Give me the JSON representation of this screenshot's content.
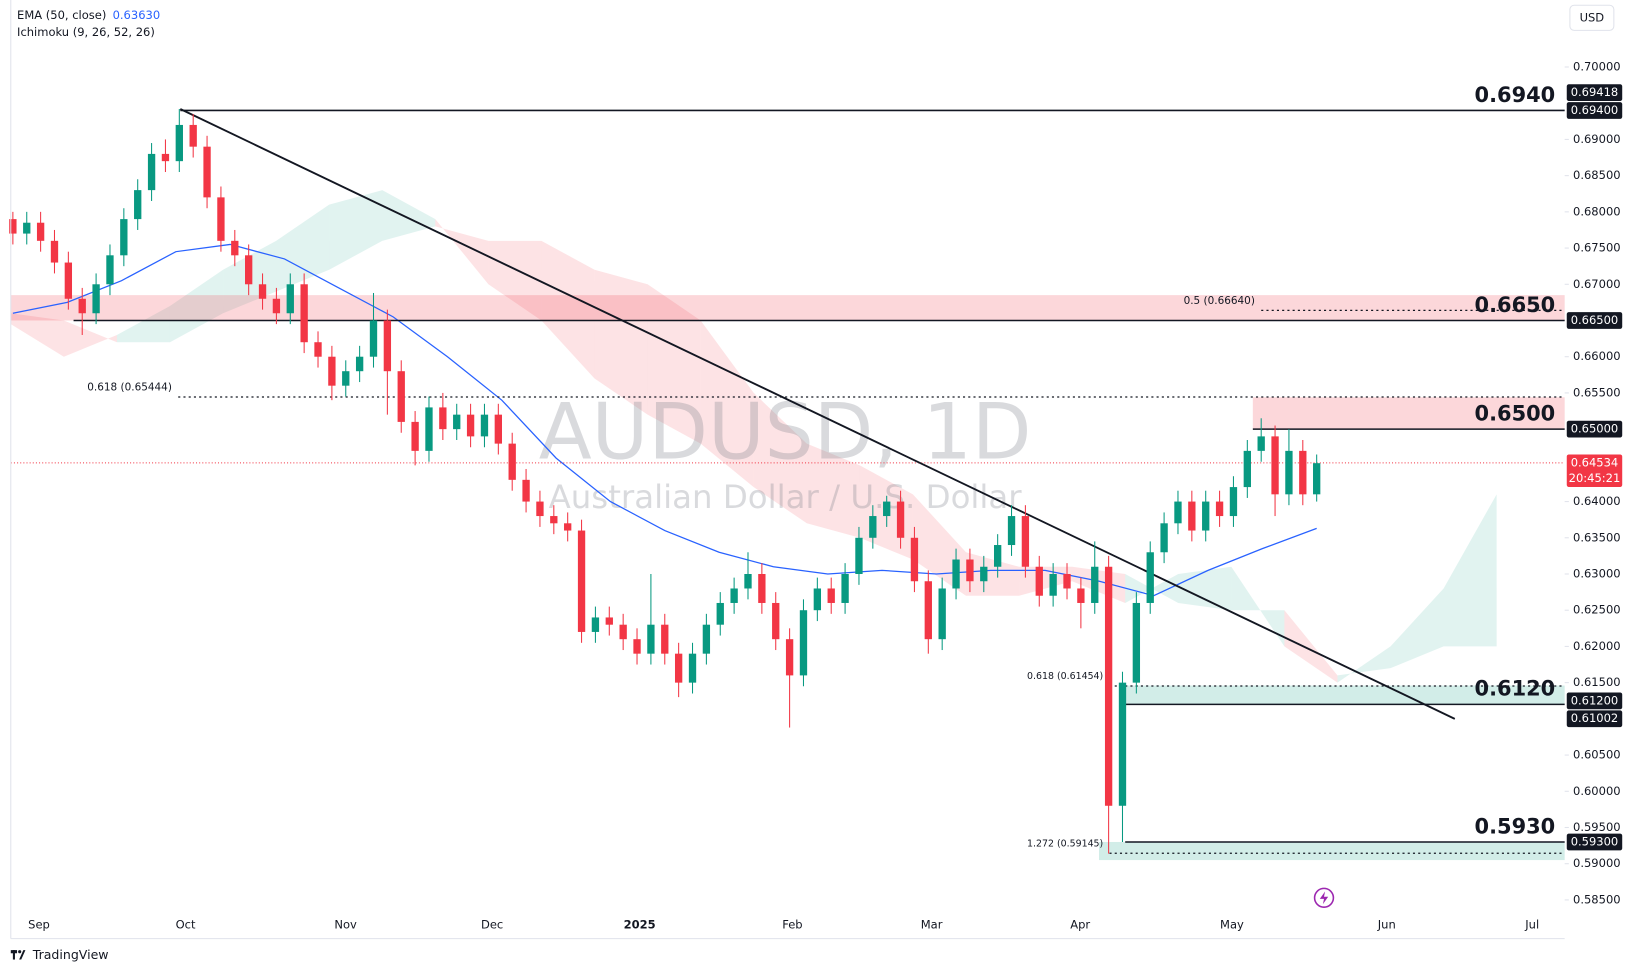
{
  "chart_data": {
    "type": "candlestick",
    "legend": [
      {
        "label": "EMA (50, close)",
        "value": 0.6363,
        "value_label": "0.63630"
      },
      {
        "label": "Ichimoku (9, 26, 52, 26)"
      }
    ],
    "watermark": "AUDUSD, 1D",
    "subtitle": "Australian Dollar / U.S. Dollar",
    "currency": "USD",
    "brand": "TradingView",
    "x_labels": [
      "Sep",
      "Oct",
      "Nov",
      "Dec",
      "2025",
      "Feb",
      "Mar",
      "Apr",
      "May",
      "Jun",
      "Jul"
    ],
    "ylim": [
      0.58356,
      0.70925
    ],
    "yticks": [
      {
        "value": 0.585,
        "label": "0.58500"
      },
      {
        "value": 0.59,
        "label": "0.59000"
      },
      {
        "value": 0.595,
        "label": "0.59500"
      },
      {
        "value": 0.6,
        "label": "0.60000"
      },
      {
        "value": 0.605,
        "label": "0.60500"
      },
      {
        "value": 0.615,
        "label": "0.61500"
      },
      {
        "value": 0.62,
        "label": "0.62000"
      },
      {
        "value": 0.625,
        "label": "0.62500"
      },
      {
        "value": 0.63,
        "label": "0.63000"
      },
      {
        "value": 0.635,
        "label": "0.63500"
      },
      {
        "value": 0.64,
        "label": "0.64000"
      },
      {
        "value": 0.655,
        "label": "0.65500"
      },
      {
        "value": 0.66,
        "label": "0.66000"
      },
      {
        "value": 0.67,
        "label": "0.67000"
      },
      {
        "value": 0.675,
        "label": "0.67500"
      },
      {
        "value": 0.68,
        "label": "0.68000"
      },
      {
        "value": 0.685,
        "label": "0.68500"
      },
      {
        "value": 0.69,
        "label": "0.69000"
      },
      {
        "value": 0.7,
        "label": "0.70000"
      }
    ],
    "up_color": "#089981",
    "down_color": "#f23645",
    "ohlc": [
      [
        0.679,
        0.68,
        0.6755,
        0.677
      ],
      [
        0.677,
        0.68,
        0.6755,
        0.6785
      ],
      [
        0.6785,
        0.68,
        0.6745,
        0.676
      ],
      [
        0.676,
        0.6775,
        0.6715,
        0.673
      ],
      [
        0.673,
        0.6745,
        0.6665,
        0.668
      ],
      [
        0.668,
        0.6695,
        0.663,
        0.666
      ],
      [
        0.666,
        0.6715,
        0.6645,
        0.67
      ],
      [
        0.67,
        0.6755,
        0.6685,
        0.674
      ],
      [
        0.674,
        0.6805,
        0.6725,
        0.679
      ],
      [
        0.679,
        0.6845,
        0.6775,
        0.683
      ],
      [
        0.683,
        0.6895,
        0.6815,
        0.688
      ],
      [
        0.688,
        0.69,
        0.6855,
        0.687
      ],
      [
        0.687,
        0.6942,
        0.6855,
        0.692
      ],
      [
        0.692,
        0.6935,
        0.6875,
        0.689
      ],
      [
        0.689,
        0.6905,
        0.6805,
        0.682
      ],
      [
        0.682,
        0.6835,
        0.6745,
        0.676
      ],
      [
        0.676,
        0.6775,
        0.6725,
        0.674
      ],
      [
        0.674,
        0.6755,
        0.6685,
        0.67
      ],
      [
        0.67,
        0.6715,
        0.6665,
        0.668
      ],
      [
        0.668,
        0.6695,
        0.6645,
        0.666
      ],
      [
        0.666,
        0.6715,
        0.6645,
        0.67
      ],
      [
        0.67,
        0.6715,
        0.6605,
        0.662
      ],
      [
        0.662,
        0.6635,
        0.6585,
        0.66
      ],
      [
        0.66,
        0.6615,
        0.654,
        0.656
      ],
      [
        0.656,
        0.6595,
        0.6545,
        0.658
      ],
      [
        0.658,
        0.6615,
        0.6565,
        0.66
      ],
      [
        0.66,
        0.6688,
        0.6585,
        0.665
      ],
      [
        0.665,
        0.6665,
        0.652,
        0.658
      ],
      [
        0.658,
        0.6595,
        0.6495,
        0.651
      ],
      [
        0.651,
        0.6525,
        0.645,
        0.647
      ],
      [
        0.647,
        0.6545,
        0.6455,
        0.653
      ],
      [
        0.653,
        0.655,
        0.6485,
        0.65
      ],
      [
        0.65,
        0.6535,
        0.6485,
        0.652
      ],
      [
        0.652,
        0.6535,
        0.6475,
        0.649
      ],
      [
        0.649,
        0.6535,
        0.6475,
        0.652
      ],
      [
        0.652,
        0.6535,
        0.6465,
        0.648
      ],
      [
        0.648,
        0.6495,
        0.6415,
        0.643
      ],
      [
        0.643,
        0.6445,
        0.6385,
        0.64
      ],
      [
        0.64,
        0.6415,
        0.6365,
        0.638
      ],
      [
        0.638,
        0.6395,
        0.6355,
        0.637
      ],
      [
        0.637,
        0.6385,
        0.6345,
        0.636
      ],
      [
        0.636,
        0.6375,
        0.6205,
        0.622
      ],
      [
        0.622,
        0.6255,
        0.6205,
        0.624
      ],
      [
        0.624,
        0.6255,
        0.6215,
        0.623
      ],
      [
        0.623,
        0.6245,
        0.6195,
        0.621
      ],
      [
        0.621,
        0.6225,
        0.6175,
        0.619
      ],
      [
        0.619,
        0.63,
        0.6175,
        0.623
      ],
      [
        0.623,
        0.6245,
        0.6175,
        0.619
      ],
      [
        0.619,
        0.6205,
        0.613,
        0.615
      ],
      [
        0.615,
        0.6205,
        0.6135,
        0.619
      ],
      [
        0.619,
        0.6245,
        0.6175,
        0.623
      ],
      [
        0.623,
        0.6275,
        0.6215,
        0.626
      ],
      [
        0.626,
        0.6295,
        0.6245,
        0.628
      ],
      [
        0.628,
        0.633,
        0.6265,
        0.63
      ],
      [
        0.63,
        0.6315,
        0.6245,
        0.626
      ],
      [
        0.626,
        0.6275,
        0.6195,
        0.621
      ],
      [
        0.621,
        0.6225,
        0.6088,
        0.616
      ],
      [
        0.616,
        0.6265,
        0.6145,
        0.625
      ],
      [
        0.625,
        0.6295,
        0.6235,
        0.628
      ],
      [
        0.628,
        0.6295,
        0.6245,
        0.626
      ],
      [
        0.626,
        0.6315,
        0.6245,
        0.63
      ],
      [
        0.63,
        0.6365,
        0.6285,
        0.635
      ],
      [
        0.635,
        0.6395,
        0.6335,
        0.638
      ],
      [
        0.638,
        0.6408,
        0.6365,
        0.64
      ],
      [
        0.64,
        0.6415,
        0.6335,
        0.635
      ],
      [
        0.635,
        0.6365,
        0.6275,
        0.629
      ],
      [
        0.629,
        0.6305,
        0.619,
        0.621
      ],
      [
        0.621,
        0.6295,
        0.6195,
        0.628
      ],
      [
        0.628,
        0.6335,
        0.6265,
        0.632
      ],
      [
        0.632,
        0.6335,
        0.6275,
        0.629
      ],
      [
        0.629,
        0.6325,
        0.6275,
        0.631
      ],
      [
        0.631,
        0.6355,
        0.6295,
        0.634
      ],
      [
        0.634,
        0.6395,
        0.6325,
        0.638
      ],
      [
        0.638,
        0.6395,
        0.6295,
        0.631
      ],
      [
        0.631,
        0.6325,
        0.6255,
        0.627
      ],
      [
        0.627,
        0.6315,
        0.6255,
        0.63
      ],
      [
        0.63,
        0.6315,
        0.6265,
        0.628
      ],
      [
        0.628,
        0.6295,
        0.6225,
        0.626
      ],
      [
        0.626,
        0.6345,
        0.6245,
        0.631
      ],
      [
        0.631,
        0.6325,
        0.5914,
        0.598
      ],
      [
        0.598,
        0.6165,
        0.593,
        0.615
      ],
      [
        0.615,
        0.6275,
        0.6135,
        0.626
      ],
      [
        0.626,
        0.6345,
        0.6245,
        0.633
      ],
      [
        0.633,
        0.6385,
        0.6315,
        0.637
      ],
      [
        0.637,
        0.6415,
        0.6355,
        0.64
      ],
      [
        0.64,
        0.6415,
        0.6345,
        0.636
      ],
      [
        0.636,
        0.6415,
        0.6345,
        0.64
      ],
      [
        0.64,
        0.6415,
        0.6365,
        0.638
      ],
      [
        0.638,
        0.6435,
        0.6365,
        0.642
      ],
      [
        0.642,
        0.6485,
        0.6405,
        0.647
      ],
      [
        0.647,
        0.6515,
        0.6455,
        0.649
      ],
      [
        0.649,
        0.6505,
        0.638,
        0.641
      ],
      [
        0.641,
        0.65,
        0.6395,
        0.647
      ],
      [
        0.647,
        0.6485,
        0.6395,
        0.641
      ],
      [
        0.641,
        0.6465,
        0.64,
        0.6453
      ]
    ],
    "ema": {
      "color": "#2962ff",
      "values": [
        0.666,
        0.6675,
        0.6705,
        0.6745,
        0.6755,
        0.6735,
        0.6695,
        0.6655,
        0.66,
        0.654,
        0.646,
        0.64,
        0.636,
        0.633,
        0.631,
        0.63,
        0.6305,
        0.63,
        0.6305,
        0.6305,
        0.629,
        0.627,
        0.6305,
        0.6335,
        0.6363
      ]
    },
    "cloud": {
      "up_color": "rgba(8,153,129,0.12)",
      "down_color": "rgba(242,54,69,0.14)",
      "span_a": [
        0.6645,
        0.66,
        0.663,
        0.667,
        0.672,
        0.676,
        0.681,
        0.683,
        0.679,
        0.67,
        0.665,
        0.657,
        0.652,
        0.648,
        0.642,
        0.637,
        0.635,
        0.632,
        0.627,
        0.627,
        0.629,
        0.626,
        0.63,
        0.631,
        0.62,
        0.615,
        0.62,
        0.628,
        0.641
      ],
      "span_b": [
        0.666,
        0.665,
        0.662,
        0.662,
        0.666,
        0.669,
        0.672,
        0.676,
        0.678,
        0.676,
        0.676,
        0.672,
        0.67,
        0.665,
        0.655,
        0.648,
        0.645,
        0.641,
        0.633,
        0.631,
        0.631,
        0.63,
        0.626,
        0.625,
        0.625,
        0.616,
        0.617,
        0.62,
        0.62
      ]
    },
    "zones": [
      {
        "from": 0.665,
        "to": 0.6685,
        "color": "rgba(242,54,69,0.2)"
      },
      {
        "from": 0.65,
        "to": 0.6544,
        "color": "rgba(242,54,69,0.2)"
      },
      {
        "from": 0.612,
        "to": 0.6146,
        "color": "rgba(8,153,129,0.18)"
      },
      {
        "from": 0.5905,
        "to": 0.593,
        "color": "rgba(8,153,129,0.18)"
      }
    ],
    "levels": [
      {
        "value": 0.694,
        "label": "0.6940"
      },
      {
        "value": 0.665,
        "label": "0.6650"
      },
      {
        "value": 0.65,
        "label": "0.6500"
      },
      {
        "value": 0.612,
        "label": "0.6120"
      },
      {
        "value": 0.593,
        "label": "0.5930"
      }
    ],
    "fibs": [
      {
        "value": 0.65444,
        "label": "0.618 (0.65444)"
      },
      {
        "value": 0.6664,
        "label": "0.5 (0.66640)"
      },
      {
        "value": 0.61454,
        "label": "0.618 (0.61454)"
      },
      {
        "value": 0.59145,
        "label": "1.272 (0.59145)"
      }
    ],
    "trendline": [
      0.6942,
      0.61
    ],
    "last_price": {
      "value": 0.64534,
      "label": "0.64534",
      "countdown": "20:45:21"
    },
    "price_tags": [
      {
        "value": 0.69418,
        "label": "0.69418"
      },
      {
        "value": 0.694,
        "label": "0.69400"
      },
      {
        "value": 0.665,
        "label": "0.66500"
      },
      {
        "value": 0.65,
        "label": "0.65000"
      },
      {
        "value": 0.612,
        "label": "0.61200"
      },
      {
        "value": 0.61002,
        "label": "0.61002"
      },
      {
        "value": 0.593,
        "label": "0.59300"
      }
    ]
  }
}
